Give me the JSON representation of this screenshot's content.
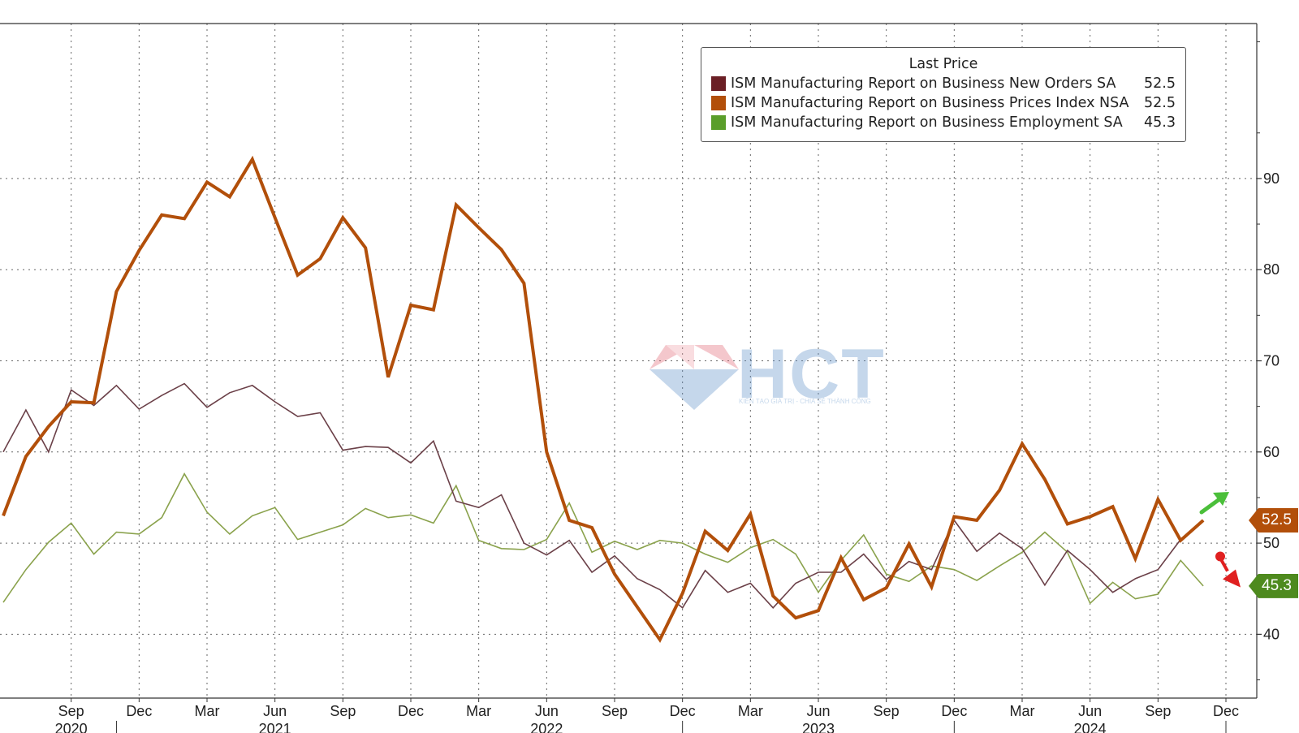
{
  "chart_data": {
    "type": "line",
    "title": "",
    "legend_title": "Last Price",
    "legend_position": "top-right",
    "xlabel": "",
    "ylabel": "",
    "ylim": [
      33,
      107
    ],
    "y_ticks": [
      40,
      50,
      60,
      70,
      80,
      90
    ],
    "x_ticks": [
      {
        "label": "Sep",
        "date": "2020-09"
      },
      {
        "label": "Dec",
        "date": "2020-12"
      },
      {
        "label": "Mar",
        "date": "2021-03"
      },
      {
        "label": "Jun",
        "date": "2021-06"
      },
      {
        "label": "Sep",
        "date": "2021-09"
      },
      {
        "label": "Dec",
        "date": "2021-12"
      },
      {
        "label": "Mar",
        "date": "2022-03"
      },
      {
        "label": "Jun",
        "date": "2022-06"
      },
      {
        "label": "Sep",
        "date": "2022-09"
      },
      {
        "label": "Dec",
        "date": "2022-12"
      },
      {
        "label": "Mar",
        "date": "2023-03"
      },
      {
        "label": "Jun",
        "date": "2023-06"
      },
      {
        "label": "Sep",
        "date": "2023-09"
      },
      {
        "label": "Dec",
        "date": "2023-12"
      },
      {
        "label": "Mar",
        "date": "2024-03"
      },
      {
        "label": "Jun",
        "date": "2024-06"
      },
      {
        "label": "Sep",
        "date": "2024-09"
      },
      {
        "label": "Dec",
        "date": "2024-12"
      }
    ],
    "year_labels": [
      {
        "label": "2020",
        "date": "2020-09"
      },
      {
        "label": "2021",
        "date": "2021-06"
      },
      {
        "label": "2022",
        "date": "2022-06"
      },
      {
        "label": "2023",
        "date": "2023-06"
      },
      {
        "label": "2024",
        "date": "2024-06"
      }
    ],
    "x_start": "2020-06",
    "x_end": "2024-12",
    "series": [
      {
        "name": "ISM Manufacturing Report on Business New Orders SA",
        "last_value": "52.5",
        "color": "#6b4048",
        "width": 1.6,
        "values": [
          60.0,
          64.6,
          60.0,
          66.8,
          65.1,
          67.3,
          64.7,
          66.2,
          67.5,
          64.9,
          66.5,
          67.3,
          65.5,
          63.9,
          64.3,
          60.2,
          60.6,
          60.5,
          58.8,
          61.2,
          54.6,
          53.9,
          55.3,
          50.0,
          48.7,
          50.3,
          46.8,
          48.6,
          46.1,
          44.9,
          42.9,
          47.0,
          44.6,
          45.6,
          42.9,
          45.6,
          46.8,
          46.8,
          48.8,
          46.0,
          48.0,
          47.1,
          52.5,
          49.1,
          51.1,
          49.4,
          45.4,
          49.2,
          47.1,
          44.6,
          46.1,
          47.1,
          50.4,
          52.5
        ]
      },
      {
        "name": "ISM Manufacturing Report on Business Prices Index NSA",
        "last_value": "52.5",
        "color": "#b24f0a",
        "width": 4,
        "values": [
          53.0,
          59.5,
          62.8,
          65.5,
          65.4,
          77.6,
          82.1,
          86.0,
          85.6,
          89.6,
          88.0,
          92.1,
          85.7,
          79.4,
          81.2,
          85.7,
          82.4,
          68.2,
          76.1,
          75.6,
          87.1,
          84.6,
          82.2,
          78.5,
          60.0,
          52.5,
          51.7,
          46.6,
          43.0,
          39.4,
          44.5,
          51.3,
          49.2,
          53.2,
          44.2,
          41.8,
          42.6,
          48.4,
          43.8,
          45.1,
          49.9,
          45.2,
          52.9,
          52.5,
          55.8,
          60.9,
          57.0,
          52.1,
          52.9,
          54.0,
          48.3,
          54.8,
          50.3,
          52.5
        ]
      },
      {
        "name": "ISM Manufacturing Report on Business Employment SA",
        "last_value": "45.3",
        "color": "#8aa24c",
        "width": 1.6,
        "values": [
          43.5,
          47.1,
          50.1,
          52.2,
          48.8,
          51.2,
          51.0,
          52.8,
          57.6,
          53.4,
          51.0,
          53.0,
          53.9,
          50.4,
          51.2,
          52.0,
          53.8,
          52.8,
          53.1,
          52.2,
          56.3,
          50.3,
          49.4,
          49.3,
          50.4,
          54.4,
          49.0,
          50.2,
          49.3,
          50.3,
          50.0,
          48.8,
          47.9,
          49.5,
          50.4,
          48.8,
          44.6,
          48.1,
          50.9,
          46.6,
          45.8,
          47.5,
          47.1,
          45.9,
          47.5,
          49.0,
          51.2,
          49.0,
          43.4,
          45.7,
          43.9,
          44.4,
          48.1,
          45.3
        ]
      }
    ],
    "end_badges": [
      {
        "value": "52.5",
        "color": "#b24f0a"
      },
      {
        "value": "45.3",
        "color": "#4e8a1e"
      }
    ],
    "watermark": {
      "text": "HCT",
      "subtext": "KIẾN TẠO GIÁ TRỊ - CHIA SẺ THÀNH CÔNG"
    }
  }
}
